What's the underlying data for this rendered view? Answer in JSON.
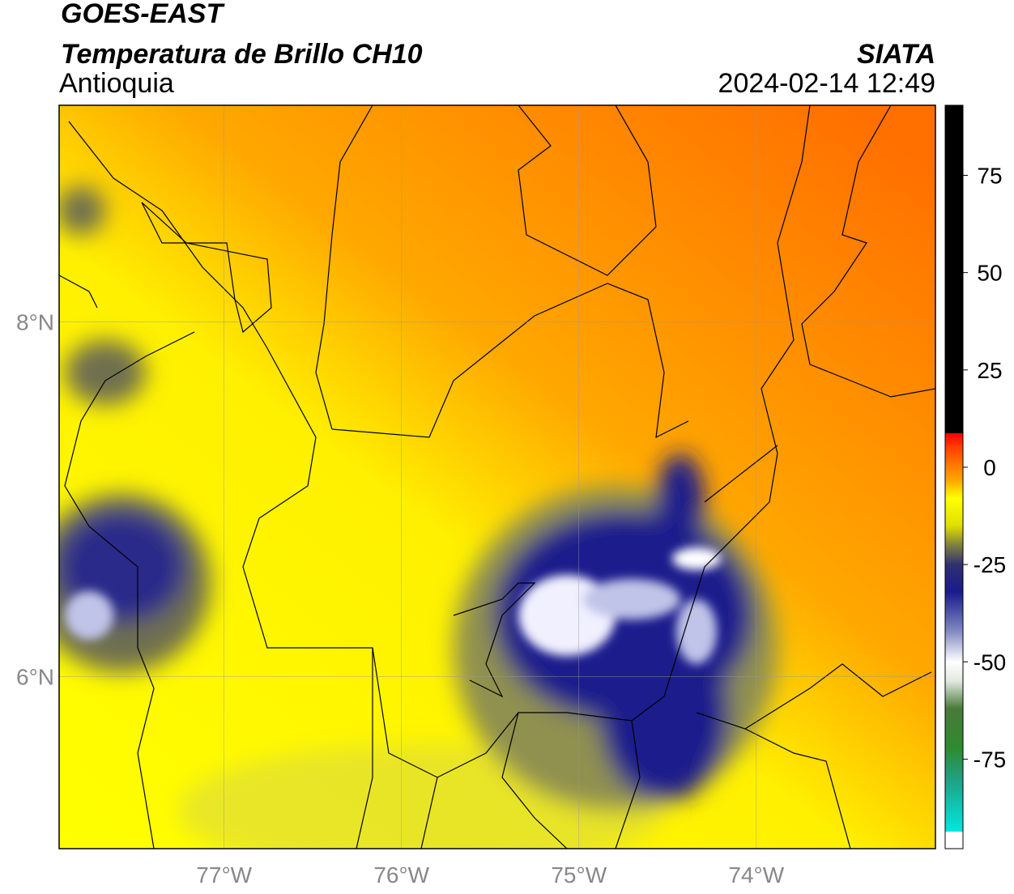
{
  "header": {
    "title": "GOES-EAST",
    "subtitle": "Temperatura de Brillo CH10",
    "region": "Antioquia",
    "source": "SIATA",
    "datetime": "2024-02-14 12:49"
  },
  "map": {
    "type": "map",
    "xlim": [
      -77.93,
      -72.99
    ],
    "ylim": [
      5.03,
      9.22
    ],
    "xticks": [
      {
        "value": -77,
        "label": "77°W"
      },
      {
        "value": -76,
        "label": "76°W"
      },
      {
        "value": -75,
        "label": "75°W"
      },
      {
        "value": -74,
        "label": "74°W"
      }
    ],
    "yticks": [
      {
        "value": 6,
        "label": "6°N"
      },
      {
        "value": 8,
        "label": "8°N"
      }
    ],
    "grid": true
  },
  "colorbar": {
    "lim": [
      -98,
      93
    ],
    "ticks": [
      -75,
      -50,
      -25,
      0,
      25,
      50,
      75
    ],
    "stops": [
      {
        "value": -98,
        "color": "#ffffff"
      },
      {
        "value": -93.6,
        "color": "#ffffff"
      },
      {
        "value": -93.6,
        "color": "#00e8e0"
      },
      {
        "value": -80,
        "color": "#20a080"
      },
      {
        "value": -72,
        "color": "#2e8b2e"
      },
      {
        "value": -62,
        "color": "#4a7a3a"
      },
      {
        "value": -55,
        "color": "#e0e8e0"
      },
      {
        "value": -50,
        "color": "#ffffff"
      },
      {
        "value": -42,
        "color": "#8088c0"
      },
      {
        "value": -32,
        "color": "#1a1a8c"
      },
      {
        "value": -25,
        "color": "#303070"
      },
      {
        "value": -20,
        "color": "#808040"
      },
      {
        "value": -15,
        "color": "#e0e000"
      },
      {
        "value": -8,
        "color": "#ffff00"
      },
      {
        "value": -3,
        "color": "#ffa000"
      },
      {
        "value": 0,
        "color": "#ff8000"
      },
      {
        "value": 5,
        "color": "#ff4000"
      },
      {
        "value": 8.7,
        "color": "#ff0000"
      },
      {
        "value": 8.7,
        "color": "#000000"
      },
      {
        "value": 93,
        "color": "#000000"
      }
    ]
  }
}
